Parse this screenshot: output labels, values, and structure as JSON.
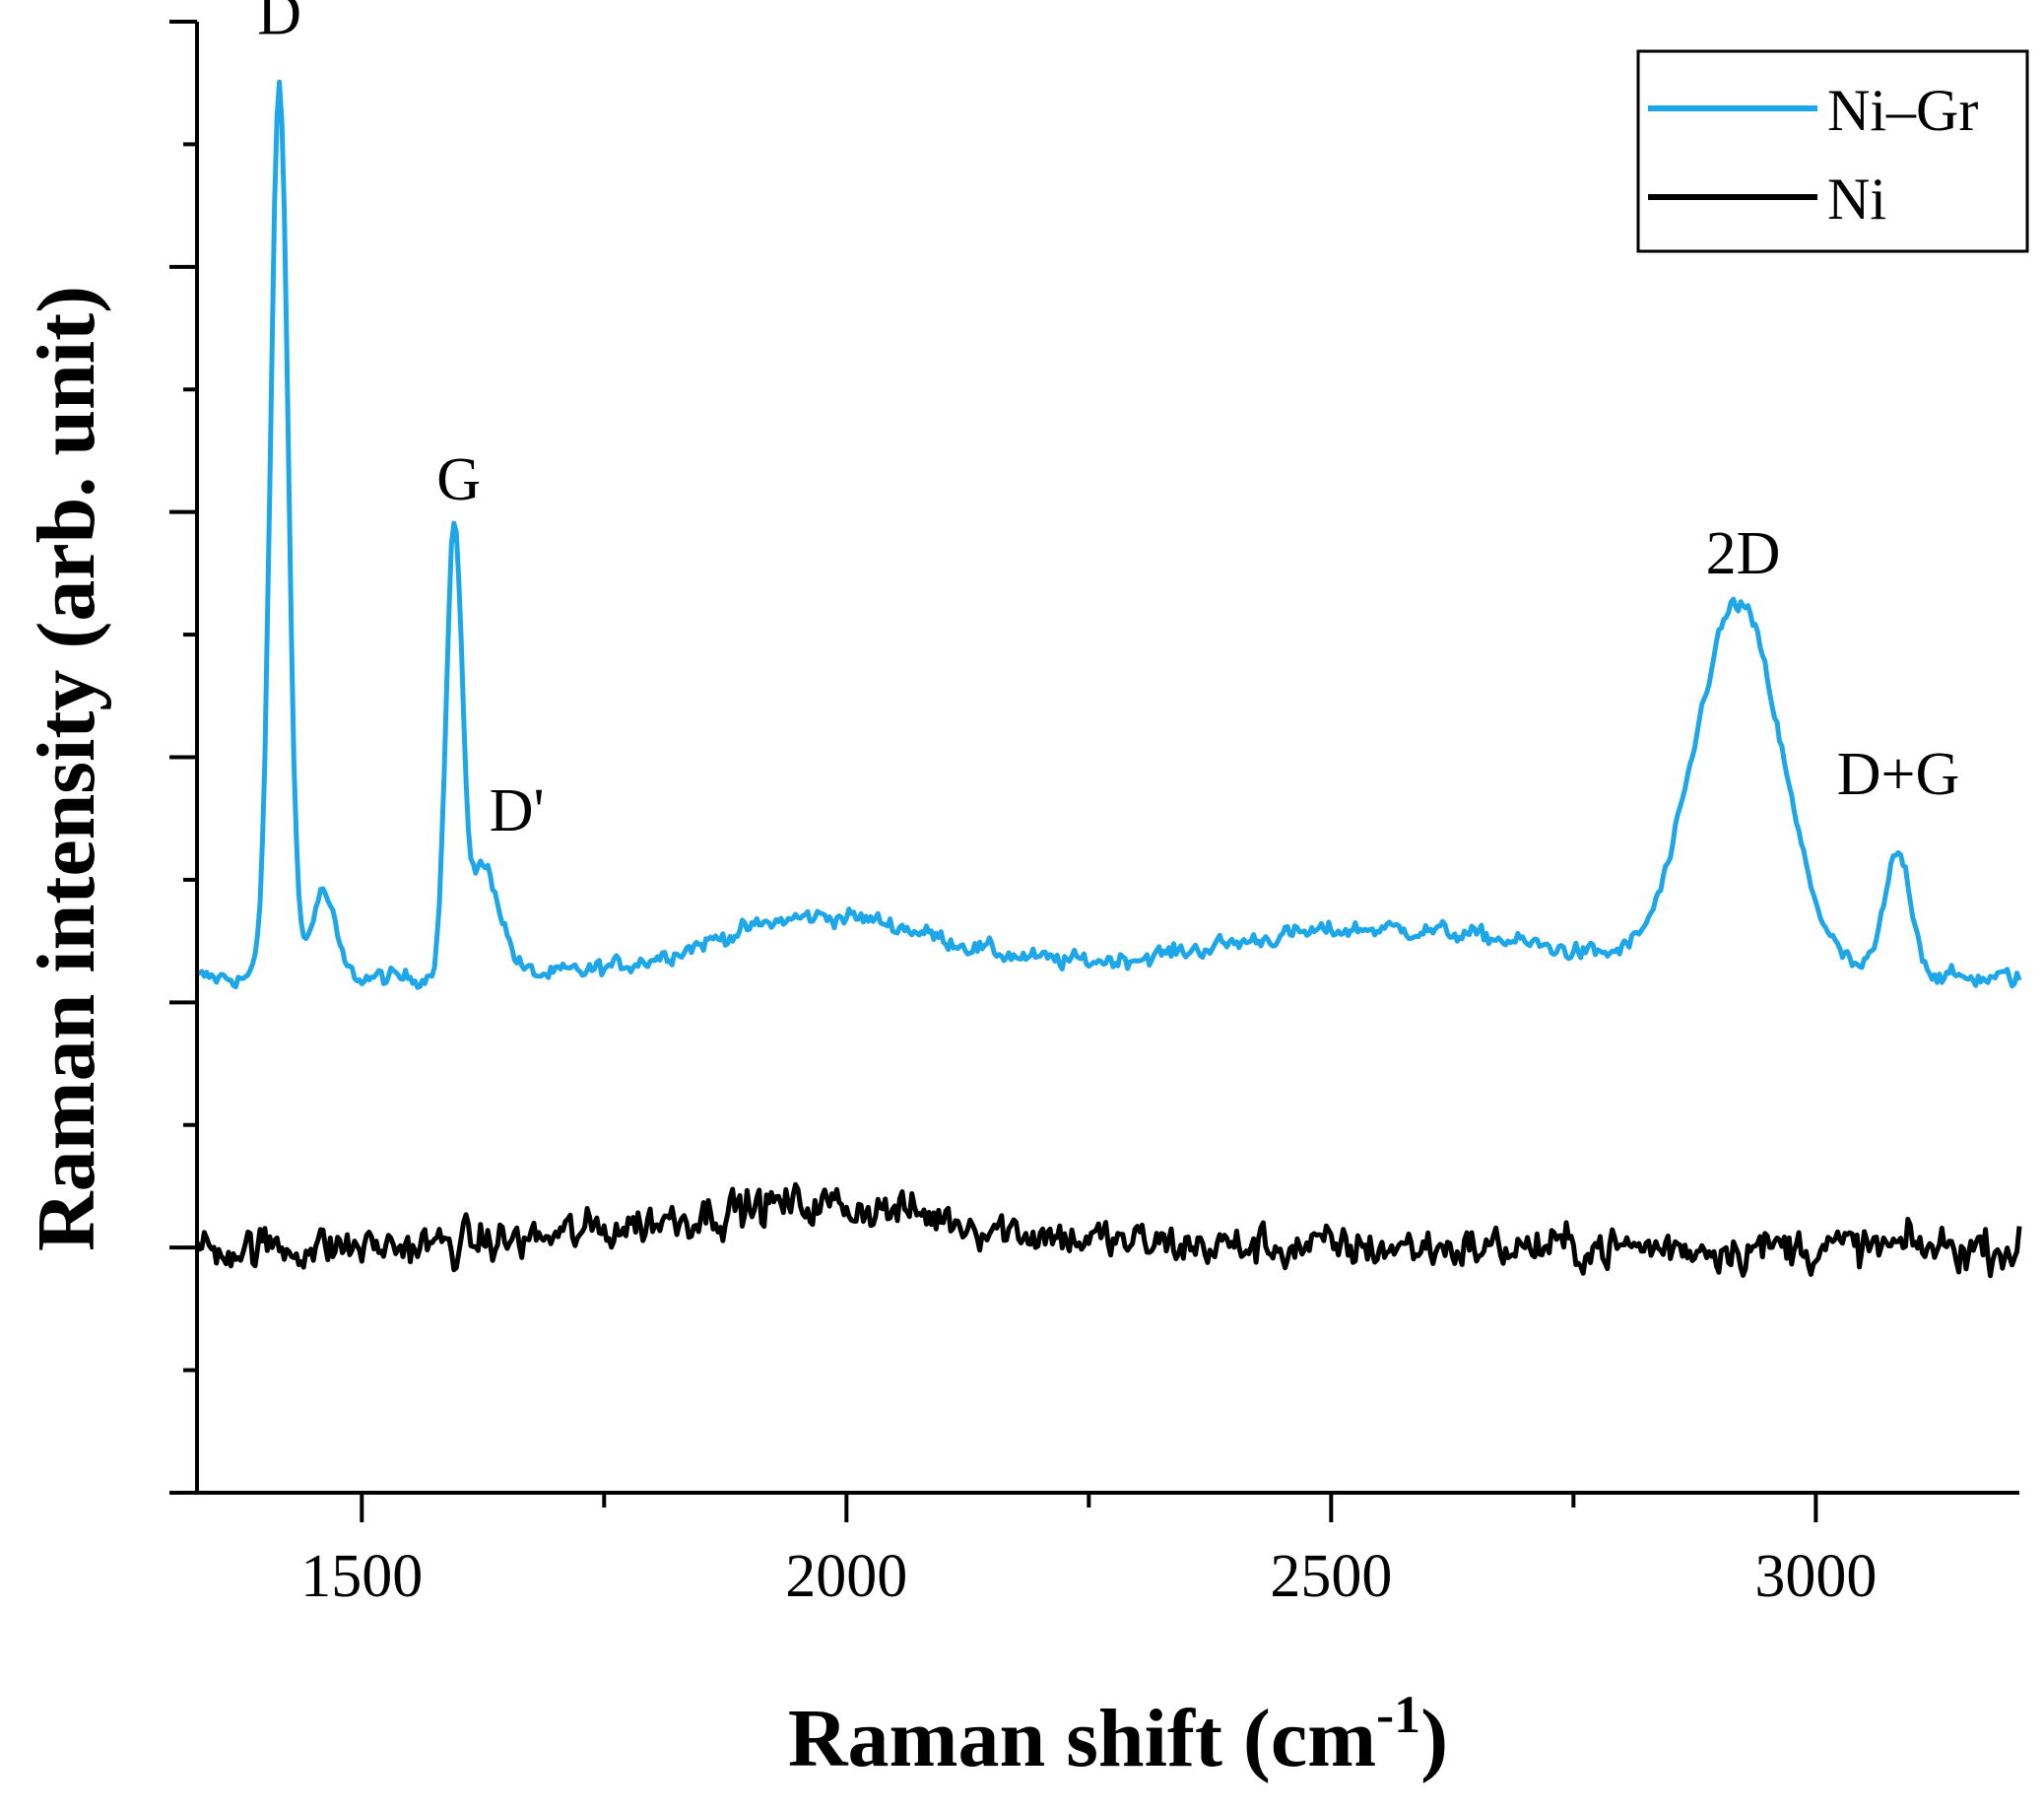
{
  "chart_data": {
    "type": "line",
    "title": "",
    "xlabel": "Raman shift",
    "xlabel_unit_base": "(cm",
    "xlabel_unit_exp": "-1",
    "xlabel_unit_close": ")",
    "ylabel": "Raman intensity (arb. unit)",
    "xlim": [
      1330,
      3210
    ],
    "ylim": [
      0,
      12
    ],
    "x_ticks": [
      1500,
      2000,
      2500,
      3000
    ],
    "y_ticks_shown": false,
    "grid": false,
    "legend_position": "top-right",
    "colors": {
      "ni_gr": "#1ea7e8",
      "ni": "#000000"
    },
    "series": [
      {
        "name": "Ni–Gr",
        "color": "#1ea7e8",
        "baseline": 4.2,
        "noise": 0.12,
        "peaks": [
          {
            "label": "D",
            "center": 1415,
            "height": 7.3,
            "width": 9
          },
          {
            "label": "G",
            "center": 1595,
            "height": 3.5,
            "width": 8
          },
          {
            "label": "D'",
            "center": 1625,
            "height": 0.9,
            "width": 18
          },
          {
            "label": "2D",
            "center": 2920,
            "height": 3.0,
            "width": 45
          },
          {
            "label": "D+G",
            "center": 3085,
            "height": 1.0,
            "width": 14
          }
        ],
        "shoulders": [
          {
            "center": 1460,
            "height": 0.7,
            "width": 12
          },
          {
            "center": 1980,
            "height": 0.5,
            "width": 120
          },
          {
            "center": 2550,
            "height": 0.4,
            "width": 180
          }
        ]
      },
      {
        "name": "Ni",
        "color": "#000000",
        "baseline": 2.0,
        "noise": 0.28,
        "peaks": [
          {
            "label": "",
            "center": 1960,
            "height": 0.35,
            "width": 160
          }
        ],
        "shoulders": []
      }
    ],
    "annotations": [
      {
        "text": "D",
        "x": 1415,
        "y": 11.9
      },
      {
        "text": "G",
        "x": 1600,
        "y": 8.1
      },
      {
        "text": "D'",
        "x": 1660,
        "y": 5.4
      },
      {
        "text": "2D",
        "x": 2925,
        "y": 7.5
      },
      {
        "text": "D+G",
        "x": 3085,
        "y": 5.7
      }
    ]
  }
}
